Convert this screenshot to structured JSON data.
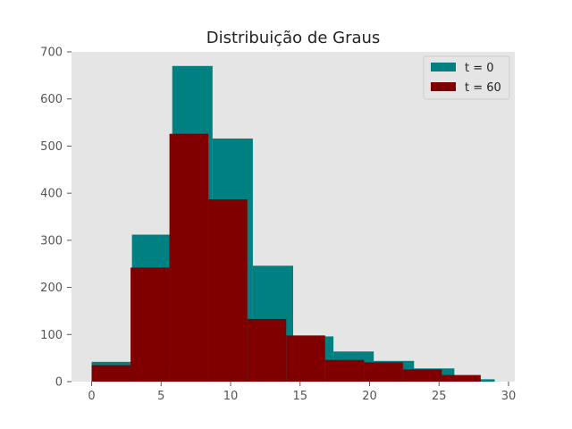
{
  "chart_data": {
    "type": "bar",
    "title": "Distribuição de Graus",
    "xlabel": "",
    "ylabel": "",
    "xlim": [
      -1.45,
      30.45
    ],
    "ylim": [
      0,
      700
    ],
    "xticks": [
      "0",
      "5",
      "10",
      "15",
      "20",
      "25",
      "30"
    ],
    "yticks": [
      "0",
      "100",
      "200",
      "300",
      "400",
      "500",
      "600",
      "700"
    ],
    "grid": false,
    "legend_position": "top-right",
    "series": [
      {
        "name": "t = 0",
        "color": "#008080",
        "bin_edges": [
          0,
          2.9,
          5.8,
          8.7,
          11.6,
          14.5,
          17.4,
          20.3,
          23.2,
          26.1,
          29
        ],
        "counts": [
          42,
          312,
          670,
          516,
          246,
          96,
          64,
          44,
          28,
          5
        ]
      },
      {
        "name": "t = 60",
        "color": "#800000",
        "bin_edges": [
          0,
          2.8,
          5.6,
          8.4,
          11.2,
          14.0,
          16.8,
          19.6,
          22.4,
          25.2,
          28
        ],
        "counts": [
          35,
          242,
          526,
          387,
          133,
          98,
          46,
          41,
          26,
          14
        ]
      }
    ]
  }
}
